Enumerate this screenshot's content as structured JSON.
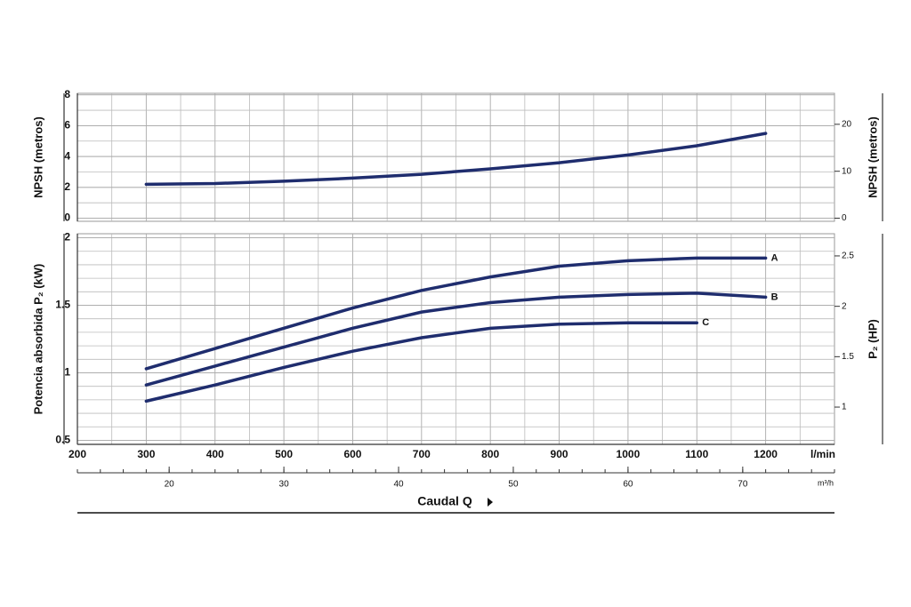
{
  "chart_data": [
    {
      "type": "line",
      "ylabel": "NPSH (metros)",
      "y2label": "NPSH (metros)",
      "xlim": [
        200,
        1300
      ],
      "xticks": [
        200,
        300,
        400,
        500,
        600,
        700,
        800,
        900,
        1000,
        1100,
        1200
      ],
      "ylim": [
        -0.2,
        8.1
      ],
      "yticks": [
        0,
        2,
        4,
        6,
        8
      ],
      "y2lim": [
        -0.66,
        26.6
      ],
      "y2ticks": [
        0,
        10,
        20
      ],
      "grid": true,
      "series": [
        {
          "color": "#1f2d6e",
          "x": [
            300,
            400,
            500,
            600,
            700,
            800,
            900,
            1000,
            1100,
            1200
          ],
          "values": [
            2.2,
            2.25,
            2.4,
            2.6,
            2.85,
            3.2,
            3.6,
            4.1,
            4.7,
            5.5
          ]
        }
      ]
    },
    {
      "type": "line",
      "ylabel": "Potencia absorbida P₂ (kW)",
      "y2label": "P₂ (HP)",
      "xlabel": "Caudal Q",
      "x_unit": "l/min",
      "x2_unit": "m³/h",
      "xlim": [
        200,
        1300
      ],
      "xticks": [
        200,
        300,
        400,
        500,
        600,
        700,
        800,
        900,
        1000,
        1100,
        1200
      ],
      "x2lim": [
        12,
        78
      ],
      "x2ticks": [
        20,
        30,
        40,
        50,
        60,
        70
      ],
      "ylim": [
        0.47,
        2.03
      ],
      "yticks": [
        0.5,
        1,
        1.5,
        2
      ],
      "y2lim": [
        0.63,
        2.72
      ],
      "y2ticks": [
        1,
        1.5,
        2,
        2.5
      ],
      "grid": true,
      "series": [
        {
          "name": "A",
          "color": "#1f2d6e",
          "x": [
            300,
            400,
            500,
            600,
            700,
            800,
            900,
            1000,
            1100,
            1200
          ],
          "values": [
            1.03,
            1.18,
            1.33,
            1.48,
            1.61,
            1.71,
            1.79,
            1.83,
            1.85,
            1.85
          ]
        },
        {
          "name": "B",
          "color": "#1f2d6e",
          "x": [
            300,
            400,
            500,
            600,
            700,
            800,
            900,
            1000,
            1100,
            1200
          ],
          "values": [
            0.91,
            1.05,
            1.19,
            1.33,
            1.45,
            1.52,
            1.56,
            1.58,
            1.59,
            1.56
          ]
        },
        {
          "name": "C",
          "color": "#1f2d6e",
          "x": [
            300,
            400,
            500,
            600,
            700,
            800,
            900,
            1000,
            1100
          ],
          "values": [
            0.79,
            0.91,
            1.04,
            1.16,
            1.26,
            1.33,
            1.36,
            1.37,
            1.37
          ]
        }
      ]
    }
  ]
}
